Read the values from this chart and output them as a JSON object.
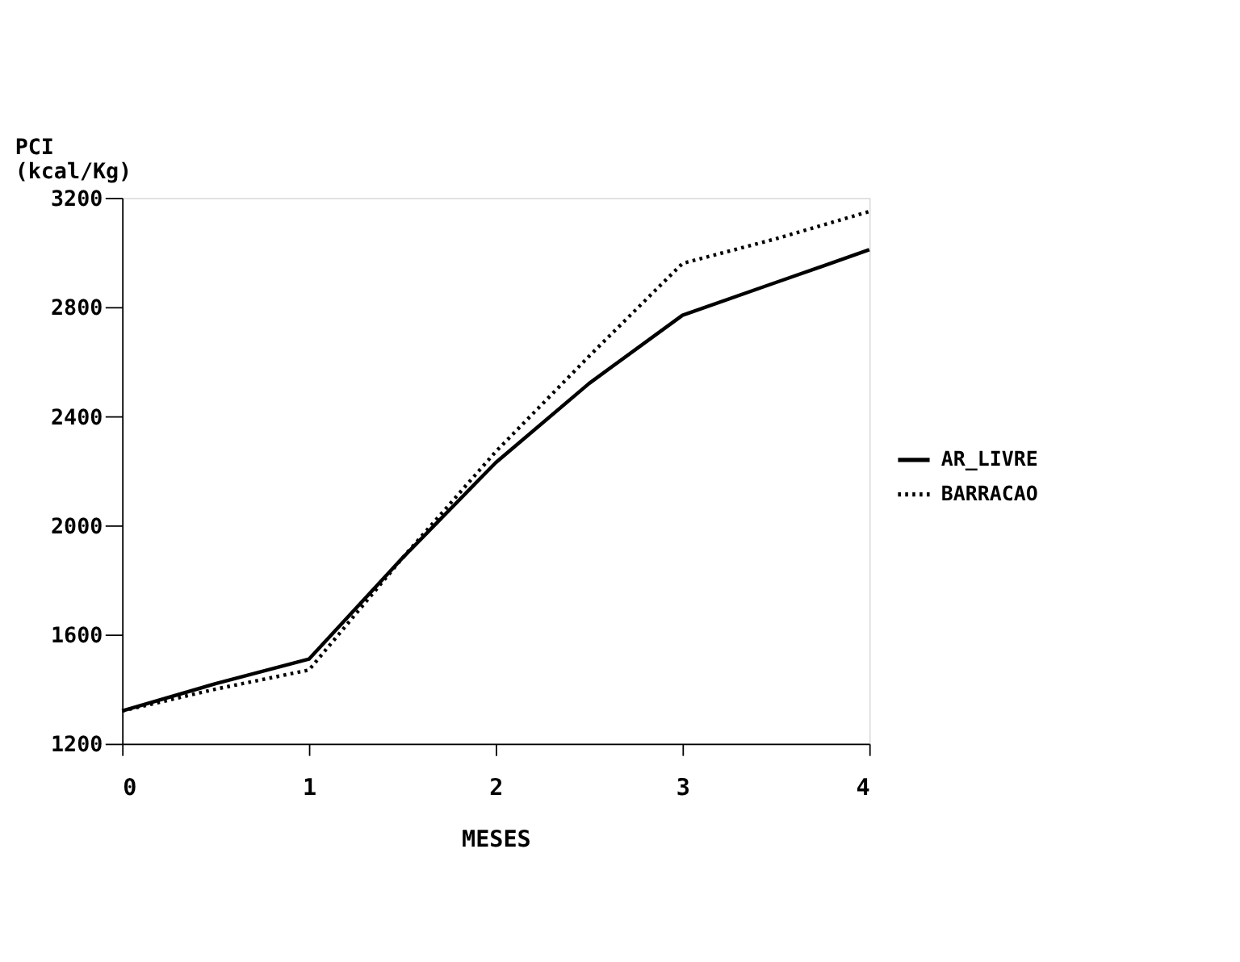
{
  "chart_data": {
    "type": "line",
    "xlabel": "MESES",
    "ylabel": "PCI\n(kcal/Kg)",
    "x": [
      0,
      0.5,
      1,
      1.5,
      2,
      2.5,
      3,
      3.5,
      4
    ],
    "series": [
      {
        "name": "AR_LIVRE",
        "color": "#000000",
        "line_style": "solid",
        "values": [
          1320,
          1420,
          1510,
          1880,
          2230,
          2520,
          2770,
          2890,
          3010
        ]
      },
      {
        "name": "BARRACAO",
        "color": "#000000",
        "line_style": "dotted",
        "values": [
          1320,
          1400,
          1470,
          1880,
          2270,
          2620,
          2960,
          3050,
          3150
        ]
      }
    ],
    "xlim": [
      0,
      4
    ],
    "xticks": [
      0,
      1,
      2,
      3,
      4
    ],
    "ylim": [
      1200,
      3200
    ],
    "yticks": [
      1200,
      1600,
      2000,
      2400,
      2800,
      3200
    ],
    "grid": false,
    "legend": "right",
    "marker": "none"
  }
}
